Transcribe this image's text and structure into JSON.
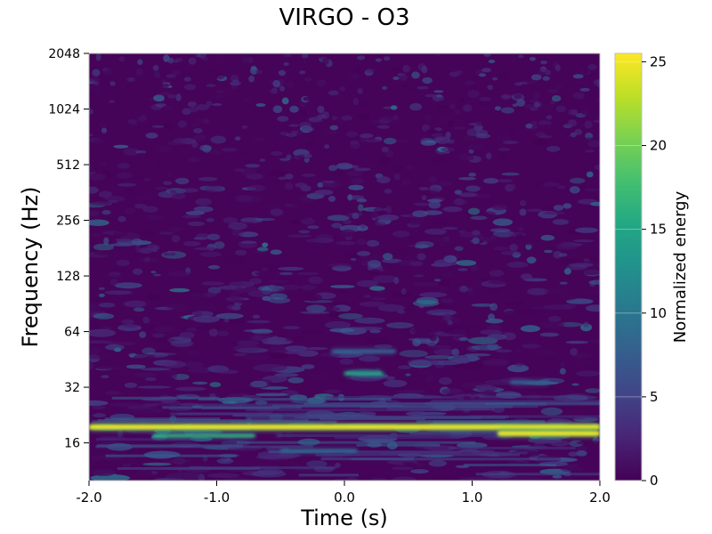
{
  "chart_data": {
    "type": "heatmap",
    "title": "VIRGO - O3",
    "xlabel": "Time (s)",
    "ylabel": "Frequency (Hz)",
    "colorbar_label": "Normalized energy",
    "xlim": [
      -2.0,
      2.0
    ],
    "ylim": [
      10,
      2048
    ],
    "yscale": "log",
    "x_ticks": [
      -2.0,
      -1.0,
      0.0,
      1.0,
      2.0
    ],
    "x_tick_labels": [
      "-2.0",
      "-1.0",
      "0.0",
      "1.0",
      "2.0"
    ],
    "y_ticks": [
      16,
      32,
      64,
      128,
      256,
      512,
      1024,
      2048
    ],
    "y_tick_labels": [
      "16",
      "32",
      "64",
      "128",
      "256",
      "512",
      "1024",
      "2048"
    ],
    "colorbar_ticks": [
      0,
      5,
      10,
      15,
      20,
      25
    ],
    "colorbar_tick_labels": [
      "0",
      "5",
      "10",
      "15",
      "20",
      "25"
    ],
    "colorbar_range": [
      0,
      25.5
    ],
    "colormap": "viridis",
    "features": [
      {
        "time": [
          -2.0,
          2.0
        ],
        "freq": 19.5,
        "energy": 25,
        "description": "bright line"
      },
      {
        "time": [
          -1.5,
          -0.7
        ],
        "freq": 17.5,
        "energy": 17
      },
      {
        "time": [
          -0.5,
          0.1
        ],
        "freq": 14.5,
        "energy": 9
      },
      {
        "time": [
          1.2,
          2.0
        ],
        "freq": 18.0,
        "energy": 25
      },
      {
        "time": [
          0.0,
          0.3
        ],
        "freq": 38,
        "energy": 16
      },
      {
        "time": [
          -0.1,
          0.4
        ],
        "freq": 50,
        "energy": 9
      },
      {
        "time": [
          1.3,
          1.6
        ],
        "freq": 34,
        "energy": 8
      }
    ]
  }
}
